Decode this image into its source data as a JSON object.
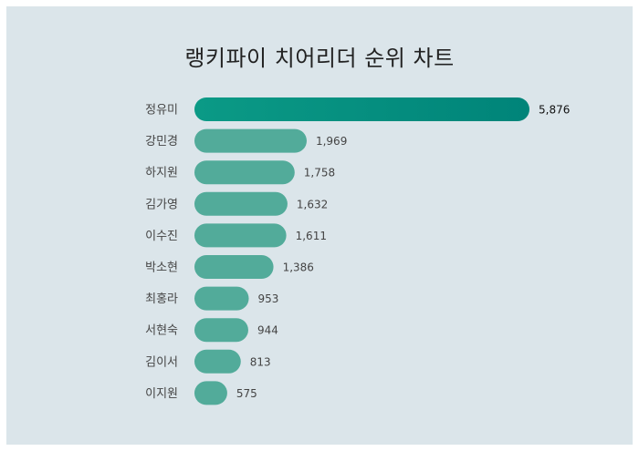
{
  "chart_data": {
    "type": "bar",
    "orientation": "horizontal",
    "title": "랭키파이 치어리더 순위 차트",
    "categories": [
      "정유미",
      "강민경",
      "하지원",
      "김가영",
      "이수진",
      "박소현",
      "최홍라",
      "서현숙",
      "김이서",
      "이지원"
    ],
    "values": [
      5876,
      1969,
      1758,
      1632,
      1611,
      1386,
      953,
      944,
      813,
      575
    ],
    "value_labels": [
      "5,876",
      "1,969",
      "1,758",
      "1,632",
      "1,611",
      "1,386",
      "953",
      "944",
      "813",
      "575"
    ],
    "xlim": [
      0,
      5876
    ],
    "grid": false,
    "colors": {
      "top": "#0b9a86",
      "top_end": "#008479",
      "bar": "#52ab9a"
    }
  }
}
